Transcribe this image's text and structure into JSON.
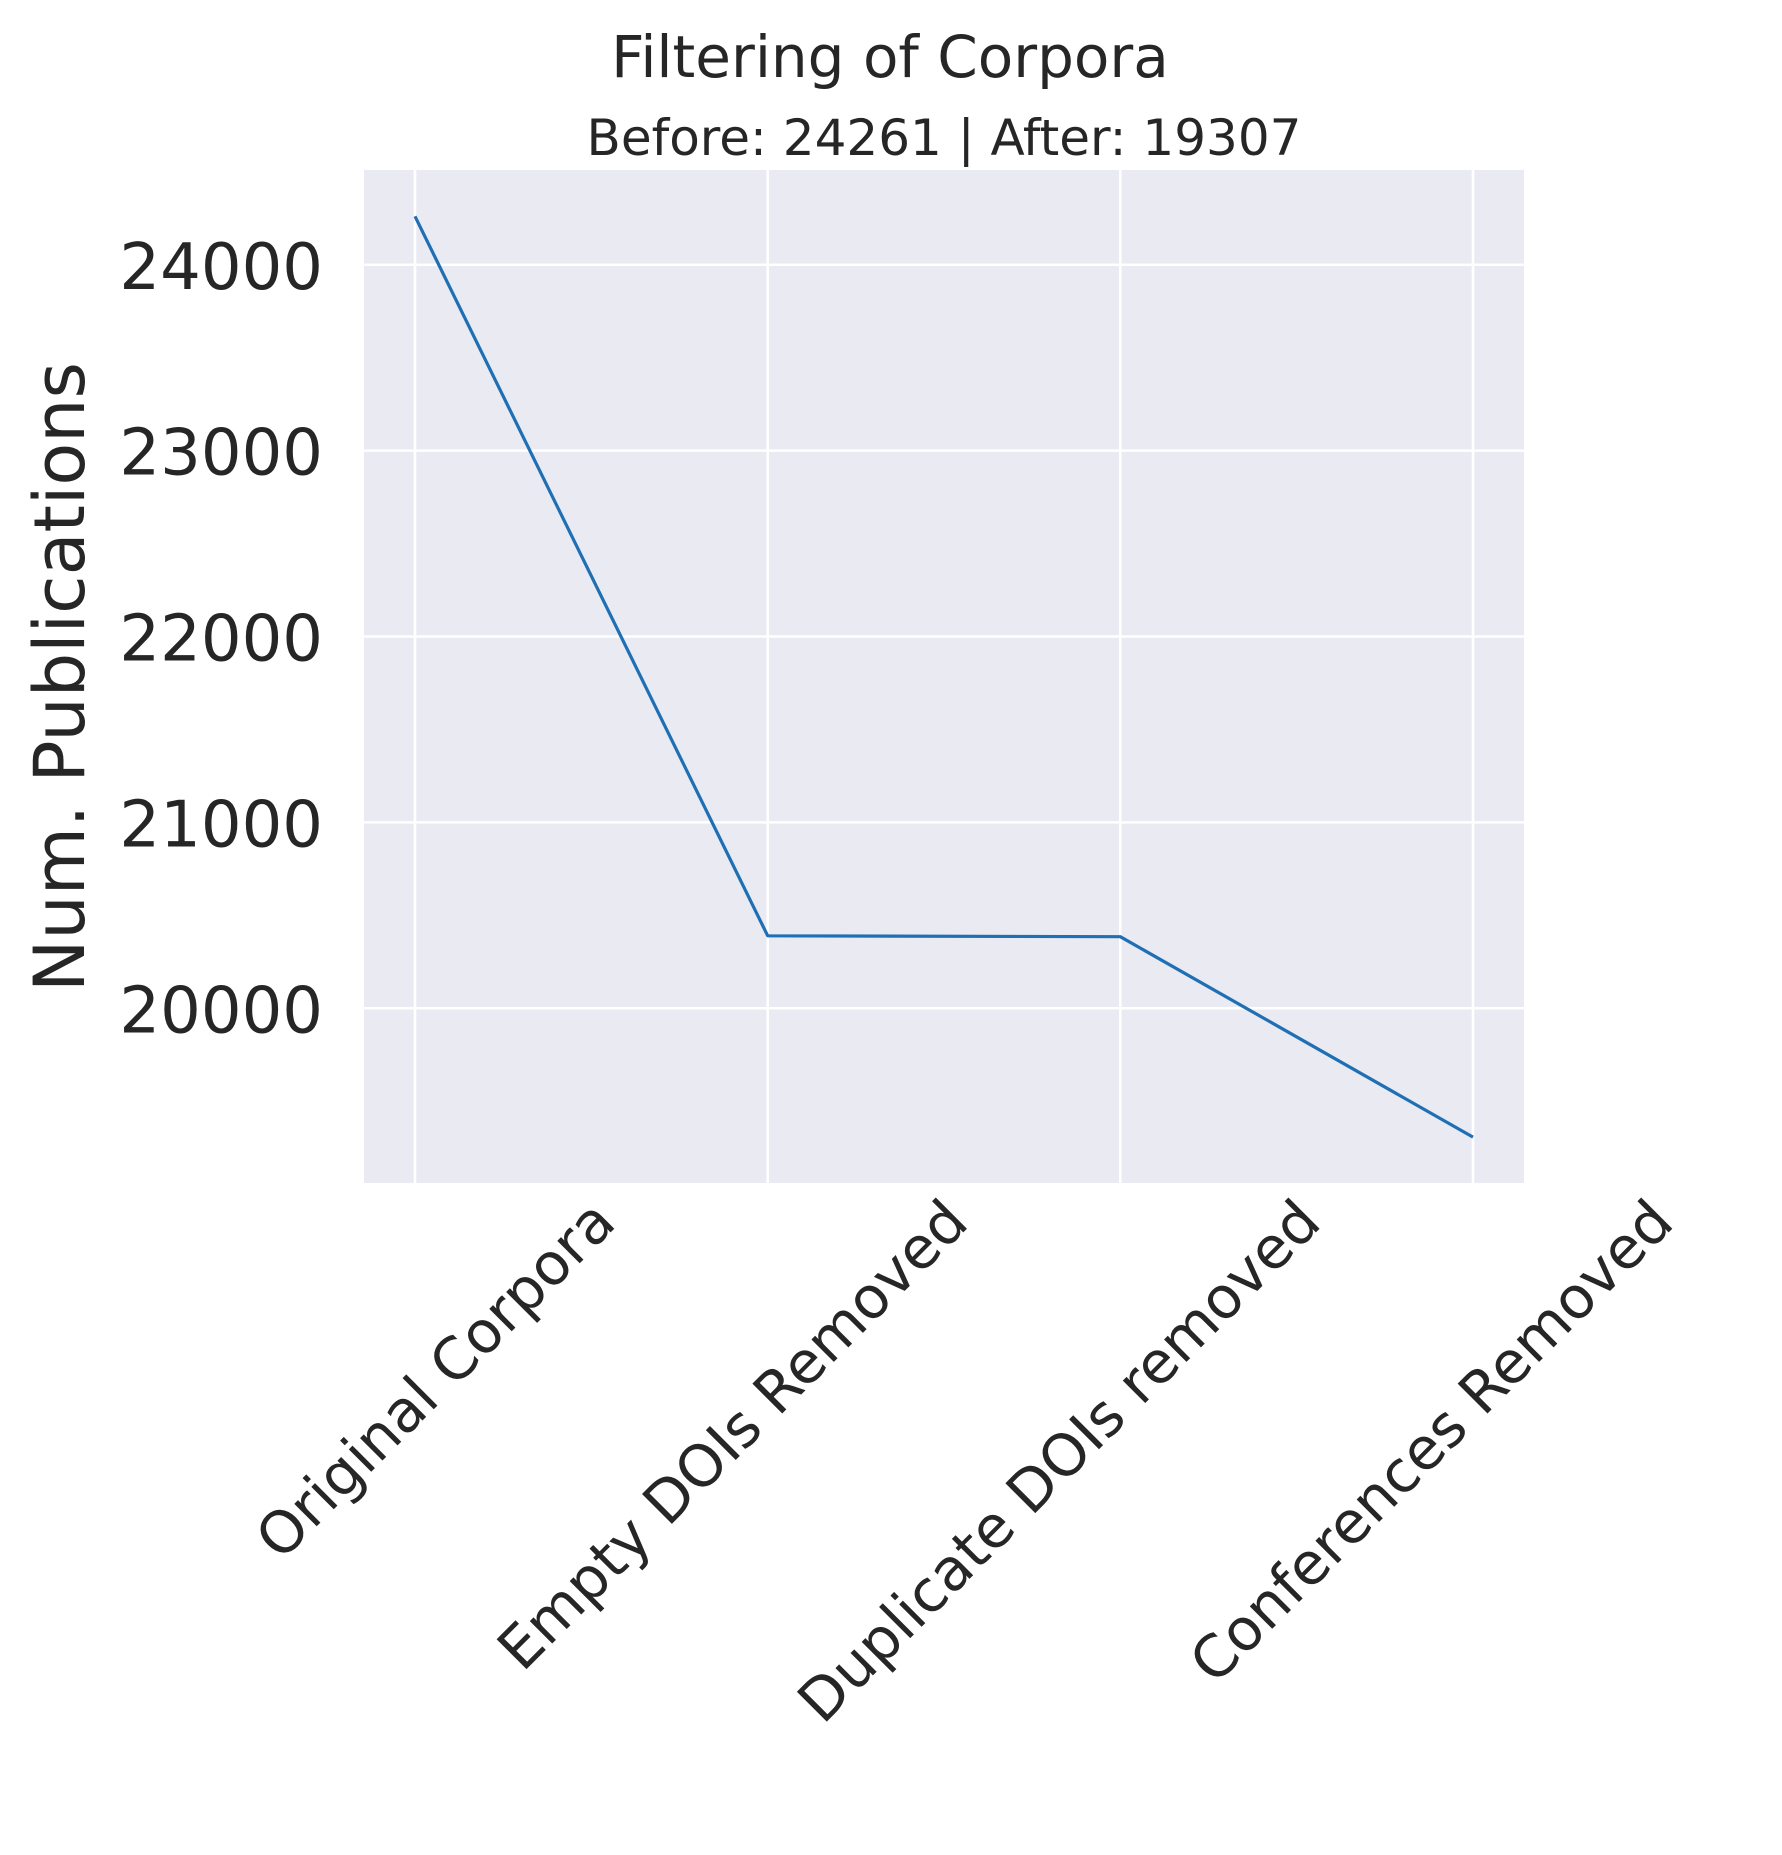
{
  "chart_data": {
    "type": "line",
    "title": "Filtering of Corpora",
    "subtitle": "Before: 24261 | After: 19307",
    "xlabel": "",
    "ylabel": "Num. Publications",
    "categories": [
      "Original Corpora",
      "Empty DOIs Removed",
      "Duplicate DOIs removed",
      "Conferences Removed"
    ],
    "series": [
      {
        "values": [
          24261,
          20390,
          20385,
          19307
        ]
      }
    ],
    "yticks": [
      20000,
      21000,
      22000,
      23000,
      24000
    ],
    "ytick_labels": [
      "20000",
      "21000",
      "22000",
      "23000",
      "24000"
    ],
    "ylim": [
      19060,
      24510
    ],
    "grid": true,
    "legend": "none",
    "colors": {
      "line": "#1f6fb4",
      "plot_bg": "#eaeaf2",
      "grid": "#ffffff",
      "text": "#262626"
    }
  }
}
